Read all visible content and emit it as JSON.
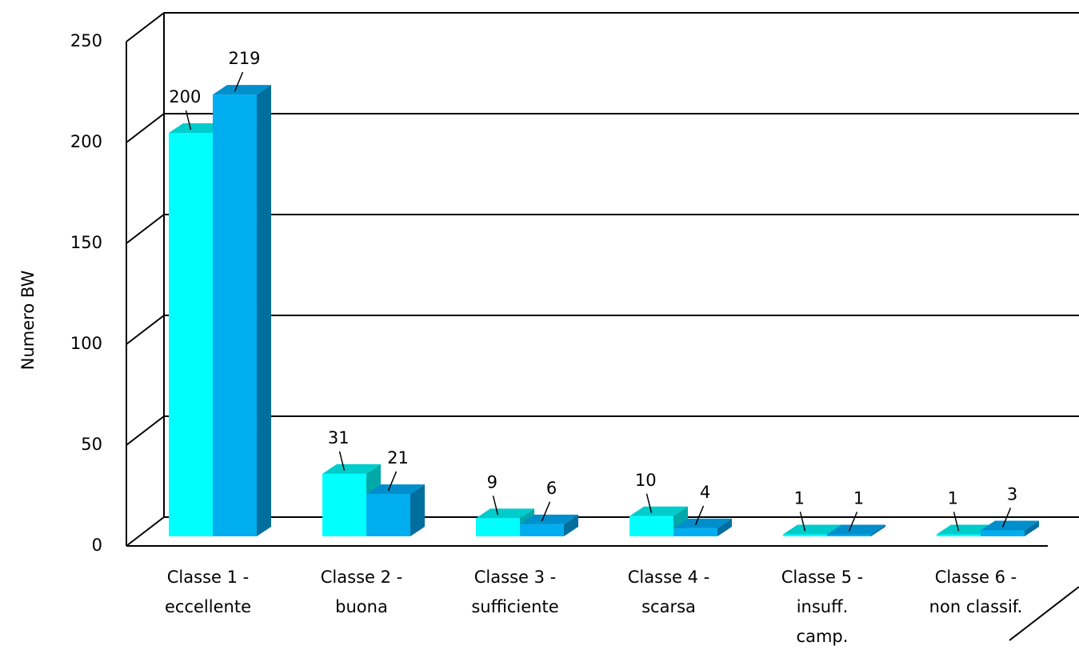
{
  "chart_data": {
    "type": "bar3d",
    "y_label": "Numero BW",
    "categories": [
      [
        "Classe 1 -",
        "eccellente"
      ],
      [
        "Classe 2 -",
        "buona"
      ],
      [
        "Classe 3 -",
        "sufficiente"
      ],
      [
        "Classe 4 -",
        "scarsa"
      ],
      [
        "Classe 5 -",
        "insuff.",
        "camp."
      ],
      [
        "Classe 6 -",
        "non classif."
      ]
    ],
    "series": [
      {
        "color": "#00ffff",
        "side": "#00a8a8",
        "top": "#00cccc",
        "values": [
          200,
          31,
          9,
          10,
          1,
          1
        ]
      },
      {
        "color": "#00aeef",
        "side": "#006f9e",
        "top": "#008fcc",
        "values": [
          219,
          21,
          6,
          4,
          1,
          3
        ]
      }
    ],
    "ylim": [
      0,
      250
    ],
    "yticks": [
      0,
      50,
      100,
      150,
      200,
      250
    ],
    "grid": true
  }
}
